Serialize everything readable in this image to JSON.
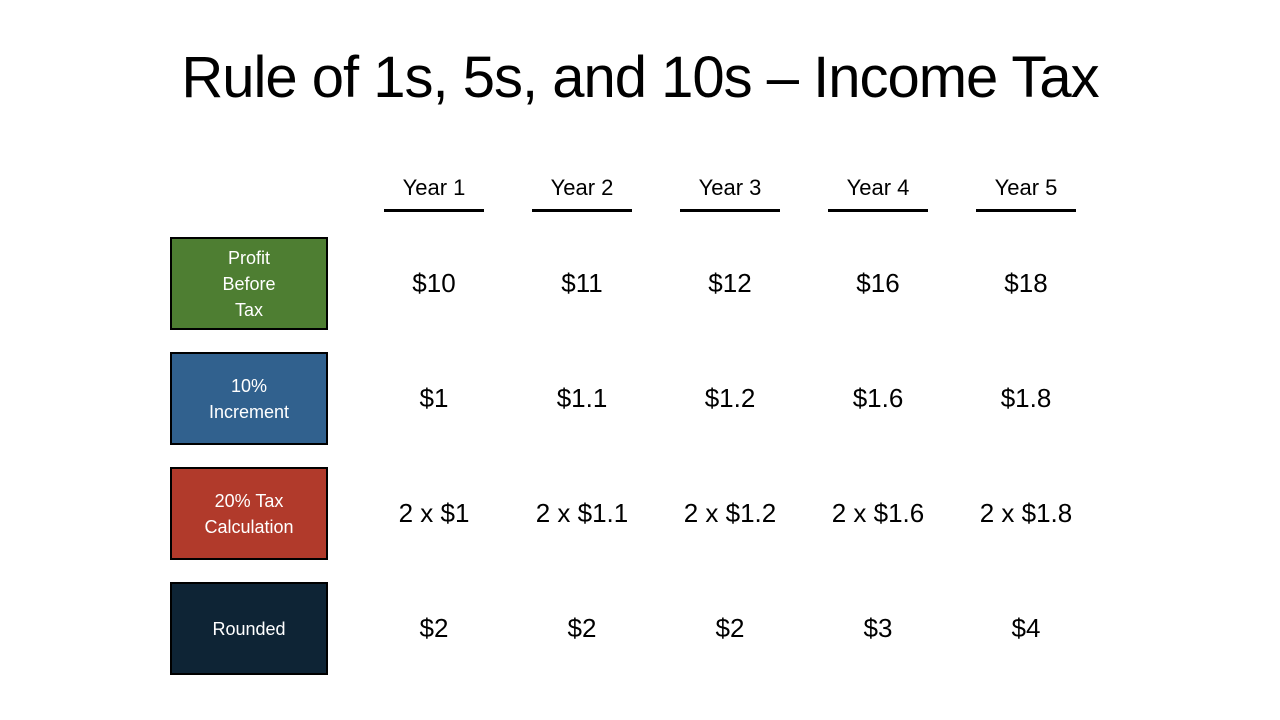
{
  "slide": {
    "title": "Rule of 1s, 5s, and 10s – Income Tax",
    "background_color": "#ffffff"
  },
  "table": {
    "column_headers": [
      "Year 1",
      "Year 2",
      "Year 3",
      "Year 4",
      "Year 5"
    ],
    "rows": [
      {
        "label": "Profit\nBefore\nTax",
        "color": "#4E7E32",
        "values": [
          "$10",
          "$11",
          "$12",
          "$16",
          "$18"
        ]
      },
      {
        "label": "10%\nIncrement",
        "color": "#31618E",
        "values": [
          "$1",
          "$1.1",
          "$1.2",
          "$1.6",
          "$1.8"
        ]
      },
      {
        "label": "20% Tax\nCalculation",
        "color": "#B13A2B",
        "values": [
          "2 x $1",
          "2 x $1.1",
          "2 x $1.2",
          "2 x $1.6",
          "2 x $1.8"
        ]
      },
      {
        "label": "Rounded",
        "color": "#0E2435",
        "values": [
          "$2",
          "$2",
          "$2",
          "$3",
          "$4"
        ]
      }
    ]
  }
}
